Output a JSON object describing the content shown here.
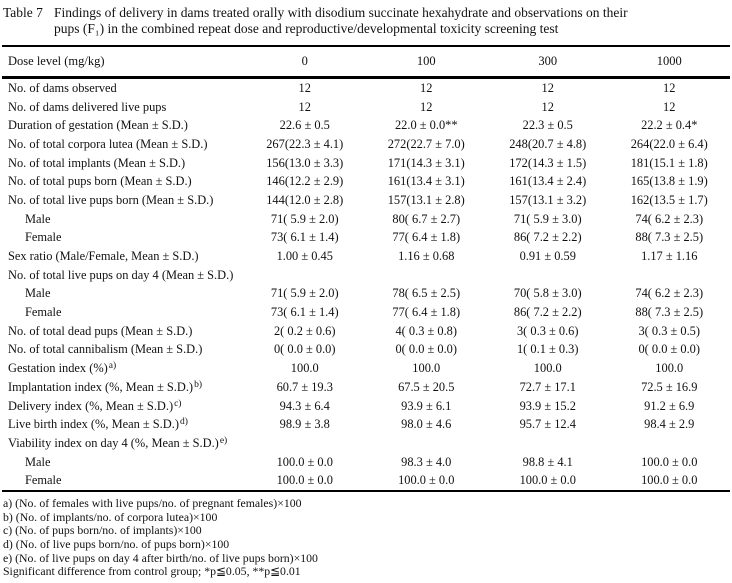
{
  "title": {
    "label": "Table 7",
    "lines": [
      "Findings of delivery in dams treated orally with disodium succinate hexahydrate and observations on their",
      "pups (F₁) in the combined repeat dose and reproductive/developmental toxicity screening test"
    ]
  },
  "table": {
    "header": {
      "label": "Dose level (mg/kg)",
      "doses": [
        "0",
        "100",
        "300",
        "1000"
      ]
    },
    "rows": [
      {
        "label": "No. of dams observed",
        "values": [
          "12",
          "12",
          "12",
          "12"
        ]
      },
      {
        "label": "No. of dams delivered live pups",
        "values": [
          "12",
          "12",
          "12",
          "12"
        ]
      },
      {
        "label": "Duration of gestation (Mean ± S.D.)",
        "values": [
          "22.6 ± 0.5",
          "22.0 ± 0.0**",
          "22.3 ± 0.5",
          "22.2 ± 0.4*"
        ]
      },
      {
        "label": "No. of total corpora lutea (Mean ± S.D.)",
        "values": [
          "267(22.3 ± 4.1)",
          "272(22.7 ± 7.0)",
          "248(20.7 ± 4.8)",
          "264(22.0 ± 6.4)"
        ]
      },
      {
        "label": "No. of total implants (Mean ± S.D.)",
        "values": [
          "156(13.0 ± 3.3)",
          "171(14.3 ± 3.1)",
          "172(14.3 ± 1.5)",
          "181(15.1 ± 1.8)"
        ]
      },
      {
        "label": "No. of total pups born (Mean ± S.D.)",
        "values": [
          "146(12.2 ± 2.9)",
          "161(13.4 ± 3.1)",
          "161(13.4 ± 2.4)",
          "165(13.8 ± 1.9)"
        ]
      },
      {
        "label": "No. of total live pups born (Mean ± S.D.)",
        "values": [
          "144(12.0 ± 2.8)",
          "157(13.1 ± 2.8)",
          "157(13.1 ± 3.2)",
          "162(13.5 ± 1.7)"
        ]
      },
      {
        "label": "Male",
        "indent": true,
        "values": [
          "71( 5.9 ± 2.0)",
          "80( 6.7 ± 2.7)",
          "71( 5.9 ± 3.0)",
          "74( 6.2 ± 2.3)"
        ]
      },
      {
        "label": "Female",
        "indent": true,
        "values": [
          "73( 6.1 ± 1.4)",
          "77( 6.4 ± 1.8)",
          "86( 7.2 ± 2.2)",
          "88( 7.3 ± 2.5)"
        ]
      },
      {
        "label": "Sex ratio (Male/Female, Mean ± S.D.)",
        "values": [
          "1.00 ± 0.45",
          "1.16 ± 0.68",
          "0.91 ± 0.59",
          "1.17 ± 1.16"
        ]
      },
      {
        "label": "No. of total live pups on day 4 (Mean ± S.D.)",
        "values": [
          "",
          "",
          "",
          ""
        ]
      },
      {
        "label": "Male",
        "indent": true,
        "values": [
          "71( 5.9 ± 2.0)",
          "78( 6.5 ± 2.5)",
          "70( 5.8 ± 3.0)",
          "74( 6.2 ± 2.3)"
        ]
      },
      {
        "label": "Female",
        "indent": true,
        "values": [
          "73( 6.1 ± 1.4)",
          "77( 6.4 ± 1.8)",
          "86( 7.2 ± 2.2)",
          "88( 7.3 ± 2.5)"
        ]
      },
      {
        "label": "No. of total dead pups (Mean ± S.D.)",
        "values": [
          "2( 0.2 ± 0.6)",
          "4( 0.3 ± 0.8)",
          "3( 0.3 ± 0.6)",
          "3( 0.3 ± 0.5)"
        ]
      },
      {
        "label": "No. of total cannibalism (Mean ± S.D.)",
        "values": [
          "0( 0.0 ± 0.0)",
          "0( 0.0 ± 0.0)",
          "1( 0.1 ± 0.3)",
          "0( 0.0 ± 0.0)"
        ]
      },
      {
        "label": "Gestation index (%)",
        "sup": "a)",
        "values": [
          "100.0",
          "100.0",
          "100.0",
          "100.0"
        ]
      },
      {
        "label": "Implantation index (%, Mean ± S.D.)",
        "sup": "b)",
        "values": [
          "60.7 ± 19.3",
          "67.5 ± 20.5",
          "72.7 ± 17.1",
          "72.5 ± 16.9"
        ]
      },
      {
        "label": "Delivery index (%, Mean ± S.D.)",
        "sup": "c)",
        "values": [
          "94.3 ± 6.4",
          "93.9 ± 6.1",
          "93.9 ± 15.2",
          "91.2 ± 6.9"
        ]
      },
      {
        "label": "Live birth index (%, Mean ± S.D.)",
        "sup": "d)",
        "values": [
          "98.9 ± 3.8",
          "98.0 ± 4.6",
          "95.7 ± 12.4",
          "98.4 ± 2.9"
        ]
      },
      {
        "label": "Viability index on day 4 (%, Mean ± S.D.)",
        "sup": "e)",
        "values": [
          "",
          "",
          "",
          ""
        ]
      },
      {
        "label": "Male",
        "indent": true,
        "values": [
          "100.0 ± 0.0",
          "98.3 ± 4.0",
          "98.8 ± 4.1",
          "100.0 ± 0.0"
        ]
      },
      {
        "label": "Female",
        "indent": true,
        "values": [
          "100.0 ± 0.0",
          "100.0 ± 0.0",
          "100.0 ± 0.0",
          "100.0 ± 0.0"
        ]
      }
    ]
  },
  "footnotes": [
    "a) (No. of females with live pups/no. of pregnant females)×100",
    "b) (No. of implants/no. of corpora lutea)×100",
    "c) (No. of pups born/no. of implants)×100",
    "d) (No. of live pups born/no. of pups born)×100",
    "e) (No. of live pups on day 4 after birth/no. of live pups born)×100",
    "Significant difference from control group; *p≦0.05, **p≦0.01"
  ]
}
